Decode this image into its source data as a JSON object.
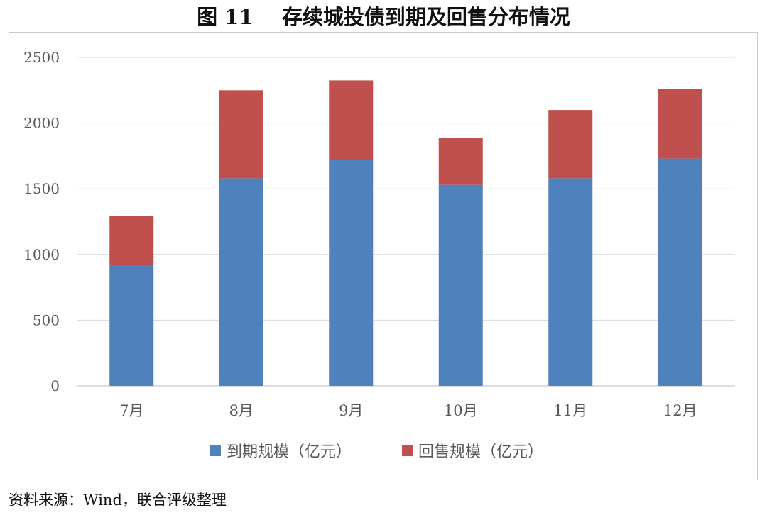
{
  "figure": {
    "title": "图 11    存续城投债到期及回售分布情况",
    "source": "资料来源：Wind，联合评级整理"
  },
  "chart_data": {
    "type": "bar",
    "stacked": true,
    "categories": [
      "7月",
      "8月",
      "9月",
      "10月",
      "11月",
      "12月"
    ],
    "series": [
      {
        "name": "到期规模（亿元）",
        "color": "#4f81bd",
        "values": [
          920,
          1580,
          1720,
          1530,
          1580,
          1730
        ]
      },
      {
        "name": "回售规模（亿元）",
        "color": "#c0504d",
        "values": [
          375,
          670,
          605,
          355,
          520,
          530
        ]
      }
    ],
    "ylim": [
      0,
      2500
    ],
    "yticks": [
      "0",
      "500",
      "1000",
      "1500",
      "2000",
      "2500"
    ],
    "grid": true,
    "legend": "bottom"
  }
}
